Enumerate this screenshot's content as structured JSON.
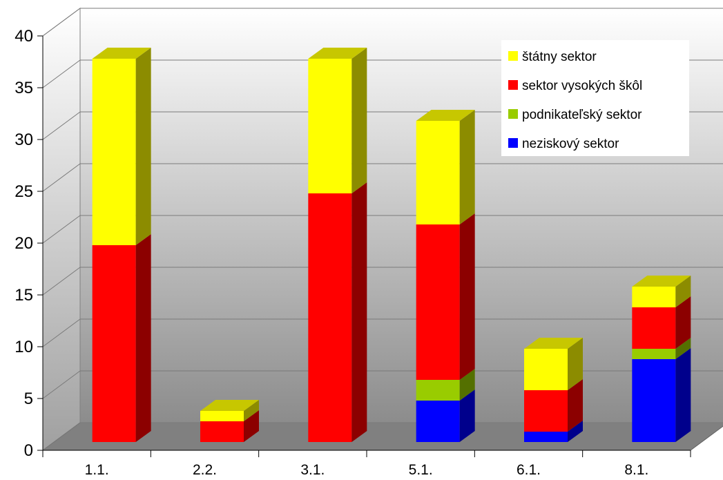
{
  "chart_data": {
    "type": "bar",
    "stacked": true,
    "three_d": true,
    "categories": [
      "1.1.",
      "2.2.",
      "3.1.",
      "5.1.",
      "6.1.",
      "8.1."
    ],
    "series": [
      {
        "name": "neziskový sektor",
        "color": "#0000ff",
        "values": [
          0,
          0,
          0,
          4,
          1,
          8
        ]
      },
      {
        "name": "podnikateľský sektor",
        "color": "#99cc00",
        "values": [
          0,
          0,
          0,
          2,
          0,
          1
        ]
      },
      {
        "name": "sektor vysokých škôl",
        "color": "#ff0000",
        "values": [
          19,
          2,
          24,
          15,
          4,
          4
        ]
      },
      {
        "name": "štátny sektor",
        "color": "#ffff00",
        "values": [
          18,
          1,
          13,
          10,
          4,
          2
        ]
      }
    ],
    "legend_order": [
      "štátny sektor",
      "sektor vysokých škôl",
      "podnikateľský sektor",
      "neziskový sektor"
    ],
    "ylim": [
      0,
      40
    ],
    "yticks": [
      0,
      5,
      10,
      15,
      20,
      25,
      30,
      35,
      40
    ],
    "grid": true,
    "legend_position": "top-right",
    "title": "",
    "xlabel": "",
    "ylabel": ""
  }
}
